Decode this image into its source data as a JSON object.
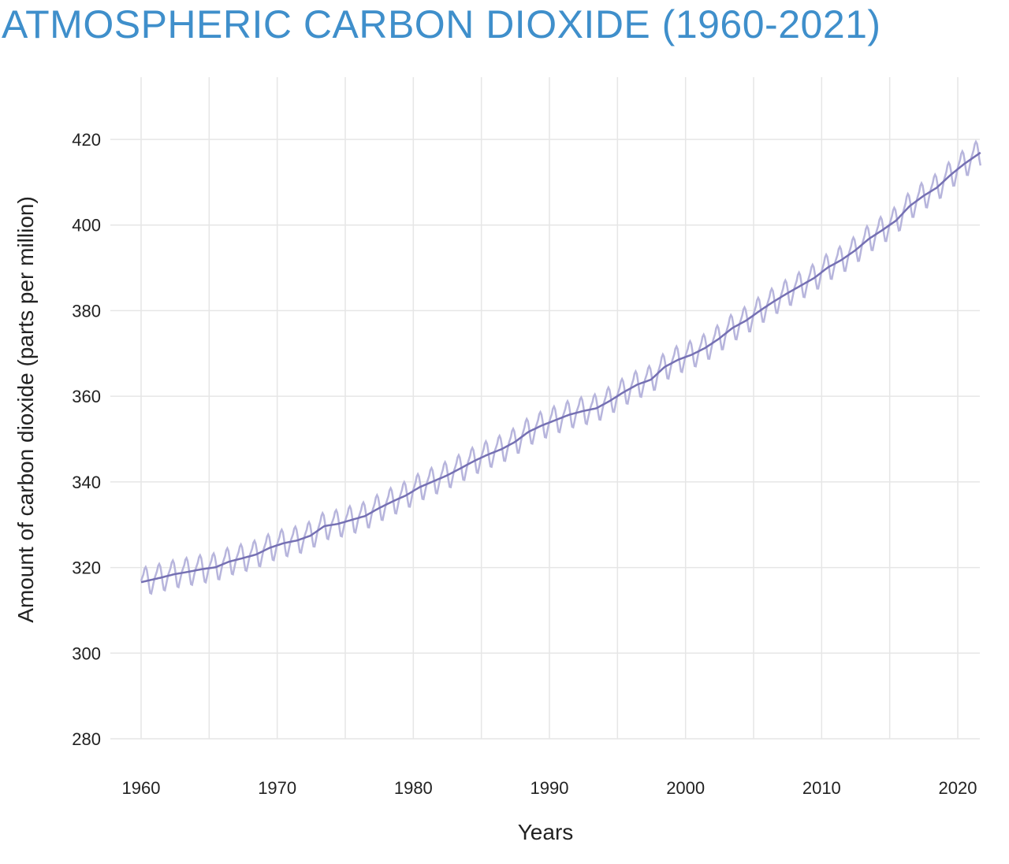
{
  "chart_data": {
    "type": "line",
    "title": "ATMOSPHERIC CARBON DIOXIDE (1960-2021)",
    "xlabel": "Years",
    "ylabel": "Amount of carbon dioxide (parts per million)",
    "xlim": [
      1960,
      2021.7
    ],
    "ylim": [
      280,
      432
    ],
    "x_ticks": [
      "1960",
      "1970",
      "1980",
      "1990",
      "2000",
      "2010",
      "2020"
    ],
    "y_ticks": [
      "280",
      "300",
      "320",
      "340",
      "360",
      "380",
      "400",
      "420"
    ],
    "grid": true,
    "colors": {
      "title": "#3f8fcb",
      "trend": "#7570b3",
      "monthly": "#b7b5dc",
      "grid": "#e6e6e6"
    },
    "years": [
      1960,
      1961,
      1962,
      1963,
      1964,
      1965,
      1966,
      1967,
      1968,
      1969,
      1970,
      1971,
      1972,
      1973,
      1974,
      1975,
      1976,
      1977,
      1978,
      1979,
      1980,
      1981,
      1982,
      1983,
      1984,
      1985,
      1986,
      1987,
      1988,
      1989,
      1990,
      1991,
      1992,
      1993,
      1994,
      1995,
      1996,
      1997,
      1998,
      1999,
      2000,
      2001,
      2002,
      2003,
      2004,
      2005,
      2006,
      2007,
      2008,
      2009,
      2010,
      2011,
      2012,
      2013,
      2014,
      2015,
      2016,
      2017,
      2018,
      2019,
      2020,
      2021
    ],
    "annual_mean_ppm": [
      316.91,
      317.64,
      318.45,
      318.99,
      319.62,
      320.04,
      321.37,
      322.18,
      323.05,
      324.62,
      325.68,
      326.32,
      327.46,
      329.68,
      330.19,
      331.12,
      332.03,
      333.84,
      335.41,
      336.84,
      338.76,
      340.12,
      341.48,
      343.15,
      344.87,
      346.35,
      347.61,
      349.31,
      351.69,
      353.2,
      354.45,
      355.7,
      356.54,
      357.21,
      358.96,
      360.97,
      362.74,
      363.88,
      366.84,
      368.54,
      369.71,
      371.32,
      373.45,
      375.98,
      377.7,
      379.98,
      382.09,
      384.02,
      385.83,
      387.64,
      390.1,
      391.85,
      394.06,
      396.74,
      398.81,
      401.01,
      404.41,
      406.76,
      408.72,
      411.66,
      414.24,
      416.45
    ],
    "seasonal_cycle_ppm": [
      0.3,
      1.0,
      1.7,
      2.9,
      3.3,
      2.6,
      0.9,
      -1.3,
      -3.0,
      -3.2,
      -2.0,
      -0.8
    ]
  }
}
